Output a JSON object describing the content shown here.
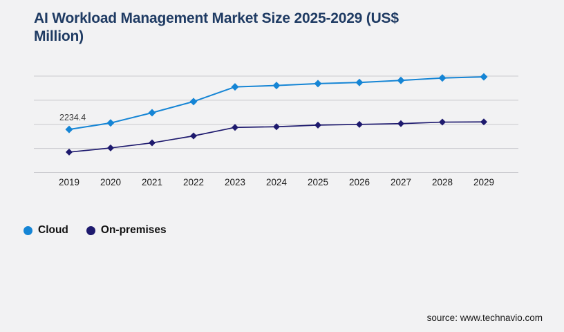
{
  "page": {
    "background_color": "#f2f2f3"
  },
  "header": {
    "title_line1": "AI Workload Management Market Size 2025-2029 (US$",
    "title_line2": "Million)",
    "title_color": "#1f3b63"
  },
  "chart_data": {
    "type": "line",
    "title": "AI Workload Management Market Size 2025-2029 (US$ Million)",
    "categories": [
      "2019",
      "2020",
      "2021",
      "2022",
      "2023",
      "2024",
      "2025",
      "2026",
      "2027",
      "2028",
      "2029"
    ],
    "series": [
      {
        "name": "Cloud",
        "color": "#1585d5",
        "marker": "diamond",
        "values": [
          2234.4,
          2570,
          3100,
          3680,
          4440,
          4510,
          4610,
          4670,
          4775,
          4900,
          4960
        ]
      },
      {
        "name": "On-premises",
        "color": "#1e1a6e",
        "marker": "diamond",
        "values": [
          1060,
          1275,
          1540,
          1900,
          2340,
          2375,
          2460,
          2495,
          2535,
          2615,
          2625
        ]
      }
    ],
    "annotation": {
      "text": "2234.4",
      "series": "Cloud",
      "category": "2019"
    },
    "ylim": [
      0,
      5000
    ],
    "gridlines": 5,
    "grid": "horizontal",
    "gridline_color": "#c9c9cd",
    "legend_position": "bottom-left"
  },
  "legend": {
    "items": [
      {
        "label": "Cloud",
        "color": "#1585d5"
      },
      {
        "label": "On-premises",
        "color": "#1e1a6e"
      }
    ]
  },
  "footer": {
    "source": "source: www.technavio.com"
  }
}
